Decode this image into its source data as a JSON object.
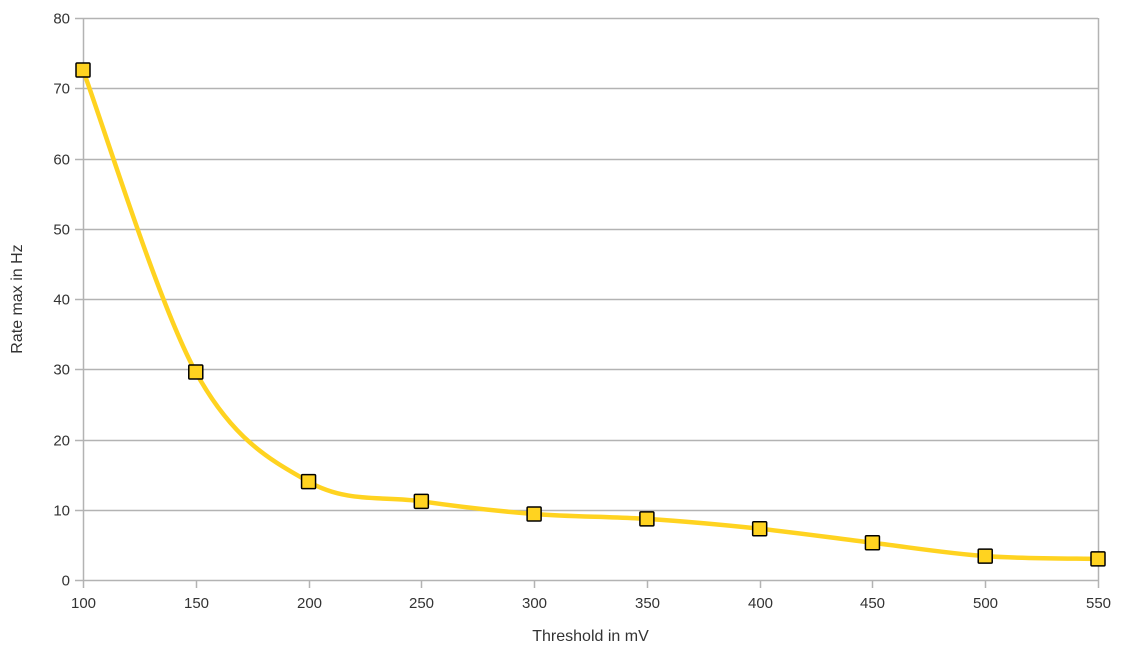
{
  "chart_data": {
    "type": "line",
    "title": "",
    "xlabel": "Threshold in mV",
    "ylabel": "Rate max in Hz",
    "x": [
      100,
      150,
      200,
      250,
      300,
      350,
      400,
      450,
      500,
      550
    ],
    "series": [
      {
        "values": [
          72.6,
          29.6,
          14.0,
          11.2,
          9.4,
          8.7,
          7.3,
          5.3,
          3.4,
          3.0
        ]
      }
    ],
    "xlim": [
      100,
      550
    ],
    "ylim": [
      0,
      80
    ],
    "x_ticks": [
      100,
      150,
      200,
      250,
      300,
      350,
      400,
      450,
      500,
      550
    ],
    "y_ticks": [
      0,
      10,
      20,
      30,
      40,
      50,
      60,
      70,
      80
    ],
    "grid": "horizontal",
    "smooth": true,
    "legend": "none",
    "colors": {
      "line": "#ffd320",
      "marker_fill": "#ffd320",
      "marker_stroke": "#000000",
      "grid": "#b3b3b3",
      "axis": "#b3b3b3"
    }
  }
}
